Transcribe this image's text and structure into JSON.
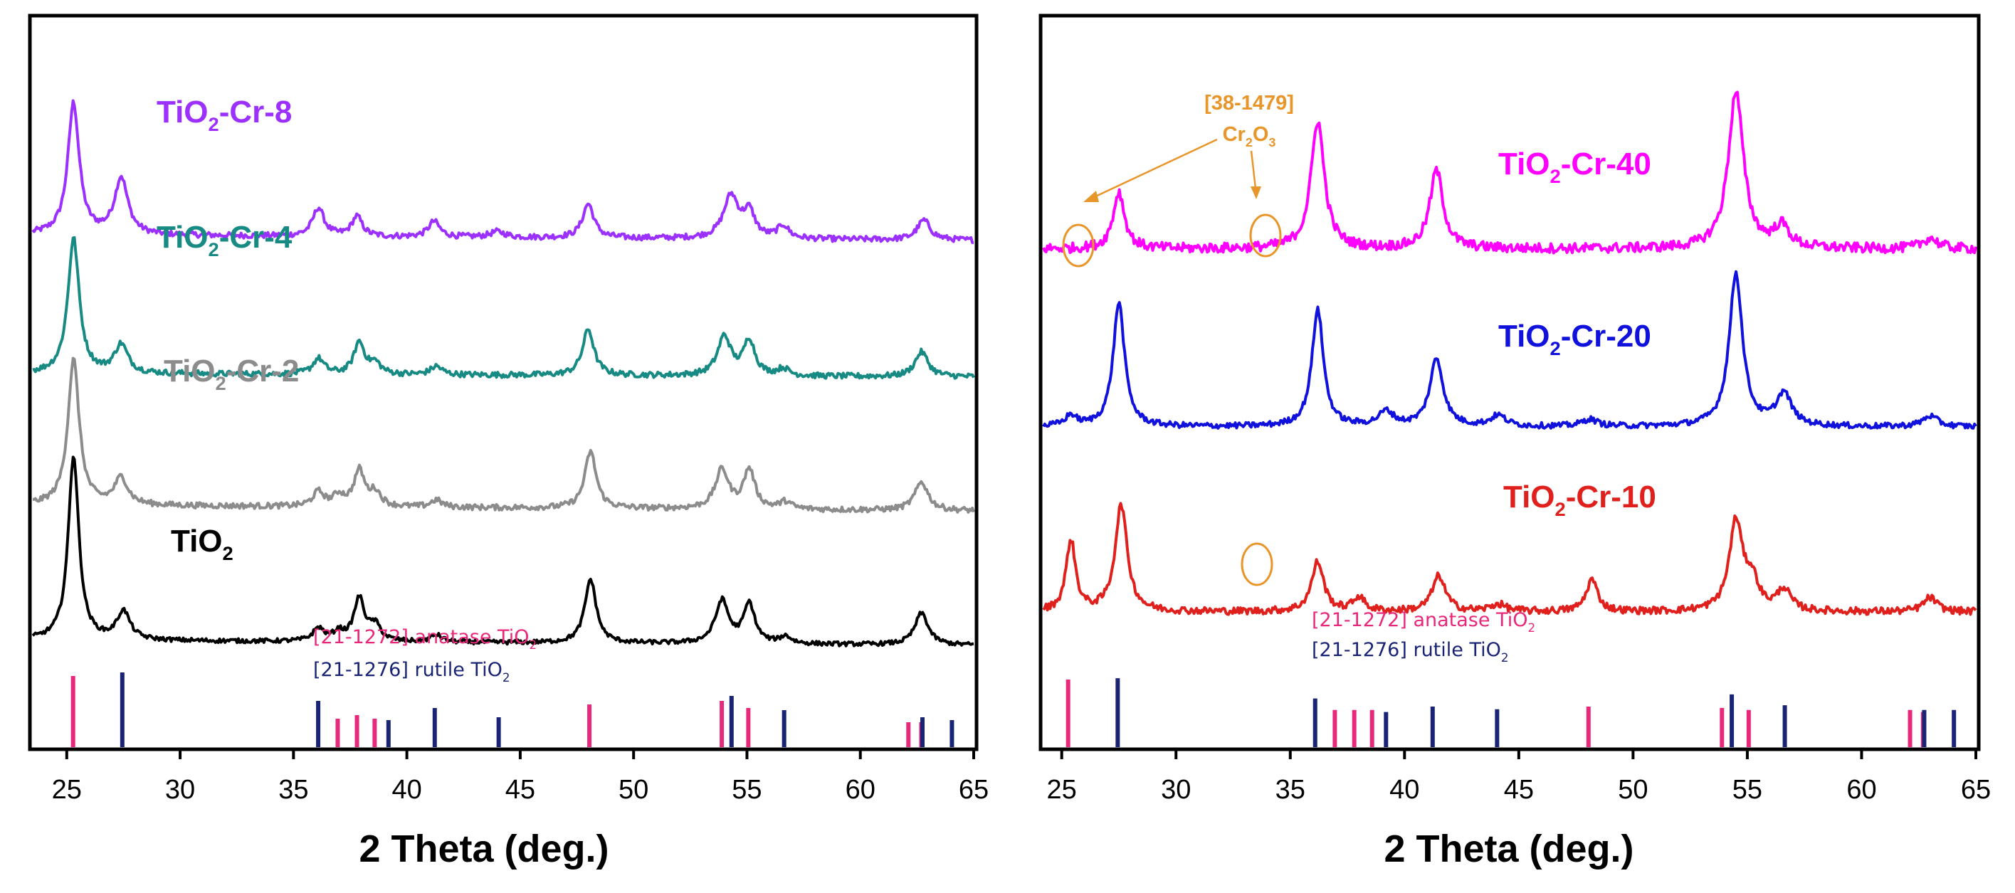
{
  "chart_data": [
    {
      "type": "line",
      "panel": "left",
      "xlabel": "2 Theta (deg.)",
      "xlim": [
        23.5,
        65
      ],
      "xticks": [
        25,
        30,
        35,
        40,
        45,
        50,
        55,
        60,
        65
      ],
      "y_units": "offset intensity (arb.)",
      "series": [
        {
          "name": "TiO2-Cr-8",
          "label_main": "TiO",
          "label_sub": "2",
          "label_rest": "-Cr-8",
          "color": "#9b30ff",
          "baseline": 720,
          "noise": 4,
          "slope": -8,
          "peaks": [
            [
              25.3,
              185,
              0.3
            ],
            [
              27.4,
              80,
              0.35
            ],
            [
              36.1,
              40,
              0.3
            ],
            [
              37.8,
              28,
              0.28
            ],
            [
              41.2,
              22,
              0.3
            ],
            [
              44.0,
              8,
              0.4
            ],
            [
              48.0,
              48,
              0.3
            ],
            [
              54.3,
              60,
              0.4
            ],
            [
              55.1,
              35,
              0.3
            ],
            [
              56.6,
              18,
              0.3
            ],
            [
              62.8,
              28,
              0.35
            ]
          ]
        },
        {
          "name": "TiO2-Cr-4",
          "label_main": "TiO",
          "label_sub": "2",
          "label_rest": "-Cr-4",
          "color": "#178a84",
          "baseline": 525,
          "noise": 4,
          "slope": -5,
          "peaks": [
            [
              25.3,
              190,
              0.3
            ],
            [
              27.4,
              40,
              0.35
            ],
            [
              36.1,
              22,
              0.3
            ],
            [
              37.9,
              45,
              0.28
            ],
            [
              38.6,
              15,
              0.3
            ],
            [
              41.3,
              12,
              0.3
            ],
            [
              48.0,
              65,
              0.3
            ],
            [
              54.0,
              55,
              0.35
            ],
            [
              55.1,
              50,
              0.3
            ],
            [
              56.6,
              10,
              0.3
            ],
            [
              62.7,
              35,
              0.35
            ]
          ]
        },
        {
          "name": "TiO2-Cr-2",
          "label_main": "TiO",
          "label_sub": "2",
          "label_rest": "-Cr-2",
          "color": "#8c8c8c",
          "baseline": 340,
          "noise": 4,
          "slope": -8,
          "peaks": [
            [
              25.3,
              205,
              0.3
            ],
            [
              27.4,
              38,
              0.35
            ],
            [
              36.1,
              20,
              0.3
            ],
            [
              37.0,
              15,
              0.3
            ],
            [
              37.9,
              50,
              0.28
            ],
            [
              38.6,
              20,
              0.3
            ],
            [
              41.3,
              10,
              0.3
            ],
            [
              48.1,
              80,
              0.3
            ],
            [
              53.9,
              55,
              0.35
            ],
            [
              55.1,
              55,
              0.3
            ],
            [
              56.7,
              10,
              0.3
            ],
            [
              62.7,
              40,
              0.35
            ]
          ]
        },
        {
          "name": "TiO2",
          "label_main": "TiO",
          "label_sub": "2",
          "label_rest": "",
          "color": "#000000",
          "baseline": 150,
          "noise": 3,
          "slope": -7,
          "peaks": [
            [
              25.3,
              260,
              0.28
            ],
            [
              27.5,
              40,
              0.35
            ],
            [
              36.1,
              18,
              0.3
            ],
            [
              37.0,
              12,
              0.3
            ],
            [
              37.9,
              60,
              0.28
            ],
            [
              38.6,
              22,
              0.3
            ],
            [
              41.3,
              10,
              0.3
            ],
            [
              48.1,
              90,
              0.3
            ],
            [
              53.9,
              60,
              0.35
            ],
            [
              55.1,
              55,
              0.3
            ],
            [
              56.7,
              10,
              0.3
            ],
            [
              62.7,
              45,
              0.35
            ]
          ]
        }
      ],
      "reference_sticks": [
        {
          "name": "[21-1272] anatase TiO2",
          "color": "#e8287a",
          "positions": [
            25.28,
            36.95,
            37.8,
            38.58,
            48.05,
            53.89,
            55.06,
            62.12,
            62.69
          ],
          "heights": [
            100,
            40,
            45,
            40,
            60,
            65,
            55,
            35,
            35
          ]
        },
        {
          "name": "[21-1276] rutile TiO2",
          "color": "#1a2475",
          "positions": [
            27.45,
            36.09,
            39.19,
            41.23,
            44.05,
            54.32,
            56.64,
            62.74,
            64.04
          ],
          "heights": [
            105,
            65,
            38,
            55,
            42,
            72,
            52,
            42,
            38
          ]
        }
      ],
      "legend": {
        "anatase": {
          "main": "[21-1272] anatase TiO",
          "sub": "2"
        },
        "rutile": {
          "main": "[21-1276] rutile TiO",
          "sub": "2"
        }
      }
    },
    {
      "type": "line",
      "panel": "right",
      "xlabel": "2 Theta (deg.)",
      "xlim": [
        24.2,
        65
      ],
      "xticks": [
        25,
        30,
        35,
        40,
        45,
        50,
        55,
        60,
        65
      ],
      "y_units": "offset intensity (arb.)",
      "series": [
        {
          "name": "TiO2-Cr-40",
          "label_main": "TiO",
          "label_sub": "2",
          "label_rest": "-Cr-40",
          "color": "#ff00ff",
          "baseline": 700,
          "noise": 7,
          "slope": 0,
          "peaks": [
            [
              27.5,
              80,
              0.3
            ],
            [
              36.2,
              180,
              0.35
            ],
            [
              41.4,
              110,
              0.35
            ],
            [
              54.5,
              220,
              0.4
            ],
            [
              56.5,
              30,
              0.4
            ],
            [
              63.0,
              15,
              0.4
            ]
          ]
        },
        {
          "name": "TiO2-Cr-20",
          "label_main": "TiO",
          "label_sub": "2",
          "label_rest": "-Cr-20",
          "color": "#1111dd",
          "baseline": 450,
          "noise": 4,
          "slope": 0,
          "peaks": [
            [
              25.4,
              15,
              0.3
            ],
            [
              27.5,
              175,
              0.3
            ],
            [
              36.2,
              165,
              0.3
            ],
            [
              39.2,
              20,
              0.4
            ],
            [
              41.4,
              95,
              0.35
            ],
            [
              44.1,
              15,
              0.4
            ],
            [
              48.1,
              10,
              0.4
            ],
            [
              54.5,
              215,
              0.35
            ],
            [
              56.6,
              45,
              0.4
            ],
            [
              63.0,
              15,
              0.4
            ]
          ]
        },
        {
          "name": "TiO2-Cr-10",
          "label_main": "TiO",
          "label_sub": "2",
          "label_rest": "-Cr-10",
          "color": "#e0201c",
          "baseline": 190,
          "noise": 5,
          "slope": 0,
          "peaks": [
            [
              25.4,
              100,
              0.25
            ],
            [
              27.6,
              150,
              0.32
            ],
            [
              36.2,
              70,
              0.32
            ],
            [
              38.0,
              20,
              0.3
            ],
            [
              41.5,
              50,
              0.35
            ],
            [
              44.1,
              10,
              0.4
            ],
            [
              48.2,
              45,
              0.3
            ],
            [
              54.5,
              125,
              0.35
            ],
            [
              55.2,
              40,
              0.35
            ],
            [
              56.6,
              30,
              0.35
            ],
            [
              63.0,
              20,
              0.35
            ]
          ]
        }
      ],
      "reference_sticks": [
        {
          "name": "[21-1272] anatase TiO2",
          "color": "#e8287a",
          "positions": [
            25.28,
            36.95,
            37.8,
            38.58,
            48.05,
            53.89,
            55.06,
            62.12,
            62.69
          ],
          "heights": [
            100,
            55,
            55,
            55,
            60,
            58,
            55,
            55,
            52
          ]
        },
        {
          "name": "[21-1276] rutile TiO2",
          "color": "#1a2475",
          "positions": [
            27.45,
            36.09,
            39.19,
            41.23,
            44.05,
            54.32,
            56.64,
            62.74,
            64.04
          ],
          "heights": [
            102,
            72,
            52,
            60,
            56,
            78,
            62,
            55,
            55
          ]
        }
      ],
      "legend": {
        "anatase": {
          "main": "[21-1272] anatase TiO",
          "sub": "2"
        },
        "rutile": {
          "main": "[21-1276] rutile TiO",
          "sub": "2"
        }
      },
      "annotation": {
        "text_line1": "[38-1479]",
        "text_line2_main": "Cr",
        "text_line2_sub1": "2",
        "text_line2_mid": "O",
        "text_line2_sub2": "3",
        "color": "#e8962a",
        "circled_positions_2theta": [
          25.7,
          33.7,
          33.6
        ],
        "circled_series": [
          "TiO2-Cr-40",
          "TiO2-Cr-40",
          "TiO2-Cr-10"
        ]
      }
    }
  ]
}
